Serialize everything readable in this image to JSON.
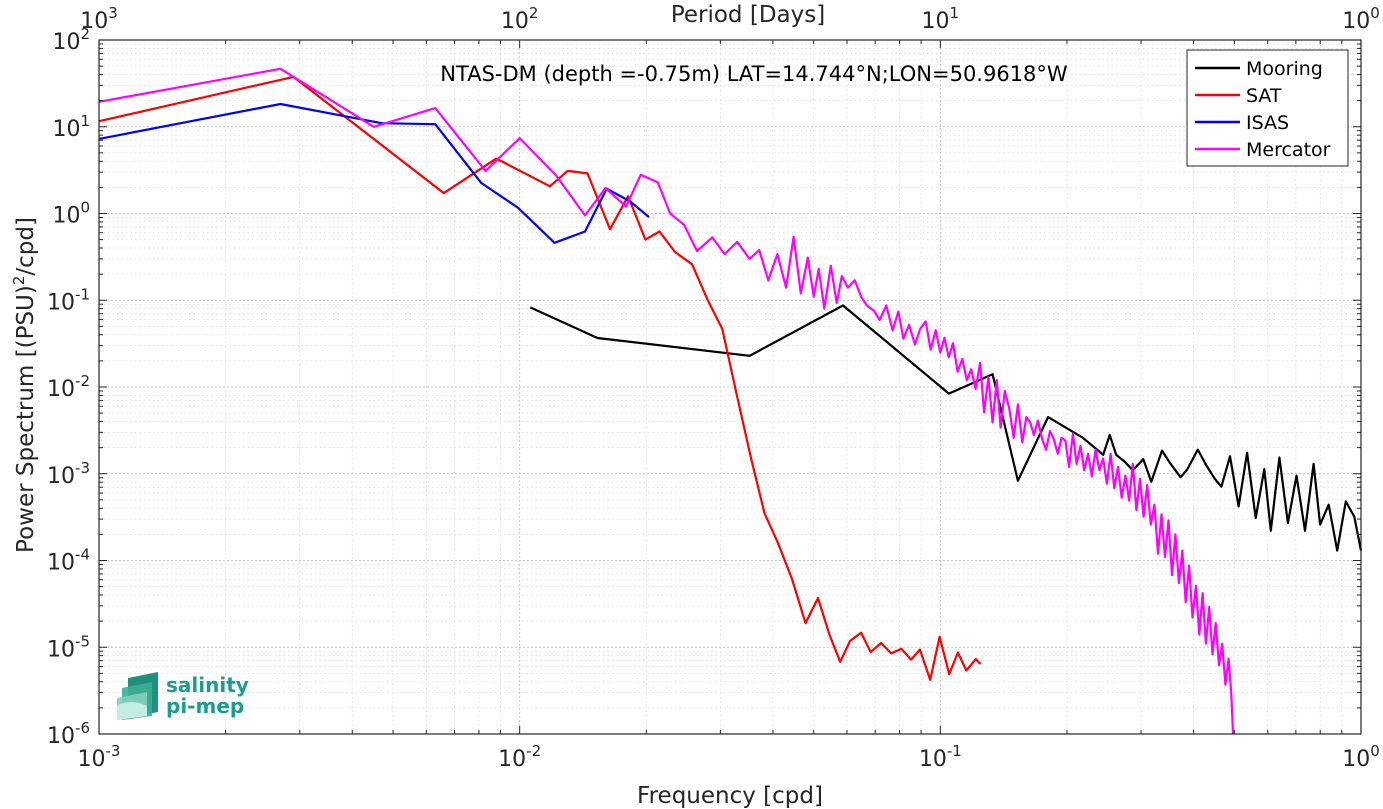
{
  "chart_data": {
    "type": "line",
    "title": "NTAS-DM (depth =-0.75m) LAT=14.744°N;LON=50.9618°W",
    "xlabel": "Frequency [cpd]",
    "ylabel": "Power Spectrum [(PSU)²/cpd]",
    "ylabel_parts": {
      "pre": "Power Spectrum [(PSU)",
      "sup": "2",
      "post": "/cpd]"
    },
    "top_axis_label": "Period [Days]",
    "x_scale": "log",
    "y_scale": "log",
    "xlim": [
      0.001,
      1
    ],
    "ylim": [
      1e-06,
      100
    ],
    "grid": true,
    "legend_position": "top-right",
    "x_ticks": [
      {
        "value": 0.001,
        "base": "10",
        "exp": "-3"
      },
      {
        "value": 0.01,
        "base": "10",
        "exp": "-2"
      },
      {
        "value": 0.1,
        "base": "10",
        "exp": "-1"
      },
      {
        "value": 1,
        "base": "10",
        "exp": "0"
      }
    ],
    "top_ticks": [
      {
        "value": 0.001,
        "base": "10",
        "exp": "3"
      },
      {
        "value": 0.01,
        "base": "10",
        "exp": "2"
      },
      {
        "value": 0.1,
        "base": "10",
        "exp": "1"
      },
      {
        "value": 1,
        "base": "10",
        "exp": "0"
      }
    ],
    "y_ticks": [
      {
        "value": 100,
        "base": "10",
        "exp": "2"
      },
      {
        "value": 10,
        "base": "10",
        "exp": "1"
      },
      {
        "value": 1,
        "base": "10",
        "exp": "0"
      },
      {
        "value": 0.1,
        "base": "10",
        "exp": "-1"
      },
      {
        "value": 0.01,
        "base": "10",
        "exp": "-2"
      },
      {
        "value": 0.001,
        "base": "10",
        "exp": "-3"
      },
      {
        "value": 0.0001,
        "base": "10",
        "exp": "-4"
      },
      {
        "value": 1e-05,
        "base": "10",
        "exp": "-5"
      },
      {
        "value": 1e-06,
        "base": "10",
        "exp": "-6"
      }
    ],
    "series": [
      {
        "name": "Mooring",
        "color": "#000000",
        "x": [
          0.0106,
          0.0153,
          0.0352,
          0.0587,
          0.1048,
          0.1331,
          0.1529,
          0.1804,
          0.2182,
          0.2439,
          0.2527,
          0.2618,
          0.2743,
          0.2866,
          0.3038,
          0.3174,
          0.3364,
          0.3515,
          0.3725,
          0.3862,
          0.4092,
          0.4289,
          0.4494,
          0.4657,
          0.4882,
          0.5116,
          0.5362,
          0.5619,
          0.5889,
          0.6103,
          0.6396,
          0.6703,
          0.7025,
          0.7362,
          0.7715,
          0.7995,
          0.8378,
          0.8779,
          0.9201,
          0.9642,
          1.0
        ],
        "y": [
          0.0827,
          0.0367,
          0.0229,
          0.0869,
          0.0084,
          0.014,
          0.00083,
          0.0045,
          0.0026,
          0.00165,
          0.0028,
          0.00165,
          0.00138,
          0.0011,
          0.00147,
          0.00081,
          0.00185,
          0.00133,
          0.00091,
          0.00112,
          0.0019,
          0.00125,
          0.00087,
          0.00071,
          0.00159,
          0.00042,
          0.00175,
          0.00031,
          0.00113,
          0.00022,
          0.00154,
          0.00027,
          0.00095,
          0.00022,
          0.0013,
          0.00026,
          0.00044,
          0.00013,
          0.00048,
          0.00032,
          0.00013
        ]
      },
      {
        "name": "SAT",
        "color": "#ff0000",
        "x": [
          0.001,
          0.0029,
          0.0066,
          0.0088,
          0.0118,
          0.013,
          0.0145,
          0.0164,
          0.0181,
          0.0199,
          0.0215,
          0.0234,
          0.0257,
          0.028,
          0.0303,
          0.0329,
          0.0355,
          0.0382,
          0.0411,
          0.0444,
          0.0478,
          0.0512,
          0.0545,
          0.0578,
          0.061,
          0.0648,
          0.0683,
          0.0723,
          0.0764,
          0.0808,
          0.0852,
          0.0894,
          0.0946,
          0.0996,
          0.105,
          0.1101,
          0.1153,
          0.1214,
          0.1247
        ],
        "y": [
          11.6,
          37.6,
          1.72,
          4.29,
          2.06,
          3.1,
          2.9,
          0.66,
          1.58,
          0.5,
          0.62,
          0.36,
          0.26,
          0.1,
          0.047,
          0.0077,
          0.0015,
          0.00035,
          0.00016,
          6.12e-05,
          1.9e-05,
          3.7e-05,
          1.4e-05,
          6.8e-06,
          1.18e-05,
          1.47e-05,
          8.8e-06,
          1.12e-05,
          8.5e-06,
          9.6e-06,
          7.2e-06,
          9.4e-06,
          4.2e-06,
          1.32e-05,
          4.9e-06,
          8.7e-06,
          5.4e-06,
          7.3e-06,
          6.4e-06
        ]
      },
      {
        "name": "ISAS",
        "color": "#0000ff",
        "x": [
          0.001,
          0.0027,
          0.0047,
          0.0063,
          0.0081,
          0.0099,
          0.0121,
          0.0143,
          0.0161,
          0.0183,
          0.0203
        ],
        "y": [
          7.24,
          18.3,
          11.0,
          10.7,
          2.25,
          1.17,
          0.46,
          0.62,
          1.93,
          1.38,
          0.91
        ]
      },
      {
        "name": "Mercator",
        "color": "#ff00ff",
        "x": [
          0.001,
          0.0027,
          0.0045,
          0.0063,
          0.0083,
          0.01,
          0.0122,
          0.0143,
          0.016,
          0.0179,
          0.0194,
          0.0213,
          0.0228,
          0.0246,
          0.0264,
          0.0287,
          0.0307,
          0.0329,
          0.0352,
          0.0371,
          0.039,
          0.041,
          0.043,
          0.0448,
          0.0466,
          0.0484,
          0.05,
          0.0514,
          0.053,
          0.0549,
          0.0567,
          0.0583,
          0.0603,
          0.0626,
          0.0648,
          0.0669,
          0.0695,
          0.0717,
          0.0744,
          0.077,
          0.0795,
          0.0817,
          0.0843,
          0.087,
          0.0896,
          0.0923,
          0.0948,
          0.0975,
          0.1,
          0.1023,
          0.1047,
          0.1072,
          0.1099,
          0.1128,
          0.1156,
          0.1184,
          0.1213,
          0.1243,
          0.1271,
          0.1301,
          0.1331,
          0.1362,
          0.1391,
          0.1423,
          0.1459,
          0.1494,
          0.1529,
          0.1566,
          0.1601,
          0.1635,
          0.1669,
          0.1706,
          0.1746,
          0.1783,
          0.1823,
          0.1861,
          0.1902,
          0.1942,
          0.1983,
          0.2024,
          0.2066,
          0.2108,
          0.2154,
          0.2199,
          0.2245,
          0.2291,
          0.2339,
          0.2388,
          0.2438,
          0.2488,
          0.2539,
          0.2591,
          0.2645,
          0.2699,
          0.2755,
          0.281,
          0.2867,
          0.2925,
          0.2983,
          0.3043,
          0.3103,
          0.3165,
          0.3227,
          0.3291,
          0.3355,
          0.342,
          0.3486,
          0.3553,
          0.3621,
          0.369,
          0.376,
          0.3831,
          0.3903,
          0.3976,
          0.405,
          0.4126,
          0.4202,
          0.4278,
          0.4356,
          0.4435,
          0.4515,
          0.4596,
          0.4678,
          0.476,
          0.4844,
          0.4917,
          0.4964
        ],
        "y": [
          19.4,
          46.6,
          10.0,
          16.4,
          3.1,
          7.4,
          2.75,
          0.95,
          1.96,
          1.2,
          2.79,
          2.28,
          1.0,
          0.74,
          0.37,
          0.53,
          0.34,
          0.47,
          0.3,
          0.38,
          0.17,
          0.34,
          0.14,
          0.54,
          0.12,
          0.31,
          0.11,
          0.23,
          0.08,
          0.25,
          0.093,
          0.19,
          0.14,
          0.17,
          0.11,
          0.087,
          0.076,
          0.059,
          0.087,
          0.045,
          0.074,
          0.036,
          0.052,
          0.031,
          0.047,
          0.057,
          0.027,
          0.045,
          0.025,
          0.037,
          0.022,
          0.032,
          0.015,
          0.021,
          0.012,
          0.016,
          0.0095,
          0.019,
          0.0051,
          0.013,
          0.0039,
          0.012,
          0.0034,
          0.009,
          0.0056,
          0.0026,
          0.0063,
          0.0023,
          0.0045,
          0.0039,
          0.0028,
          0.0041,
          0.0025,
          0.0019,
          0.0031,
          0.0025,
          0.0017,
          0.0026,
          0.0024,
          0.0012,
          0.0029,
          0.0013,
          0.0021,
          0.0011,
          0.0017,
          0.00093,
          0.0019,
          0.0011,
          0.0015,
          0.00077,
          0.0017,
          0.00068,
          0.0012,
          0.00053,
          0.00095,
          0.00049,
          0.0013,
          0.00038,
          0.00087,
          0.00032,
          0.00074,
          0.00026,
          0.00044,
          0.00012,
          0.00034,
          0.00011,
          0.00029,
          6.8e-05,
          0.0002,
          5.5e-05,
          0.00013,
          3.3e-05,
          8.7e-05,
          2.2e-05,
          5.1e-05,
          1.4e-05,
          4.2e-05,
          1.1e-05,
          2.9e-05,
          8.3e-06,
          1.9e-05,
          6.2e-06,
          1.1e-05,
          3.7e-06,
          7.4e-06,
          2.9e-06,
          1e-06
        ]
      }
    ]
  },
  "logo": {
    "line1": "salinity",
    "line2": "pi-mep",
    "color": "#1a9d8f"
  }
}
